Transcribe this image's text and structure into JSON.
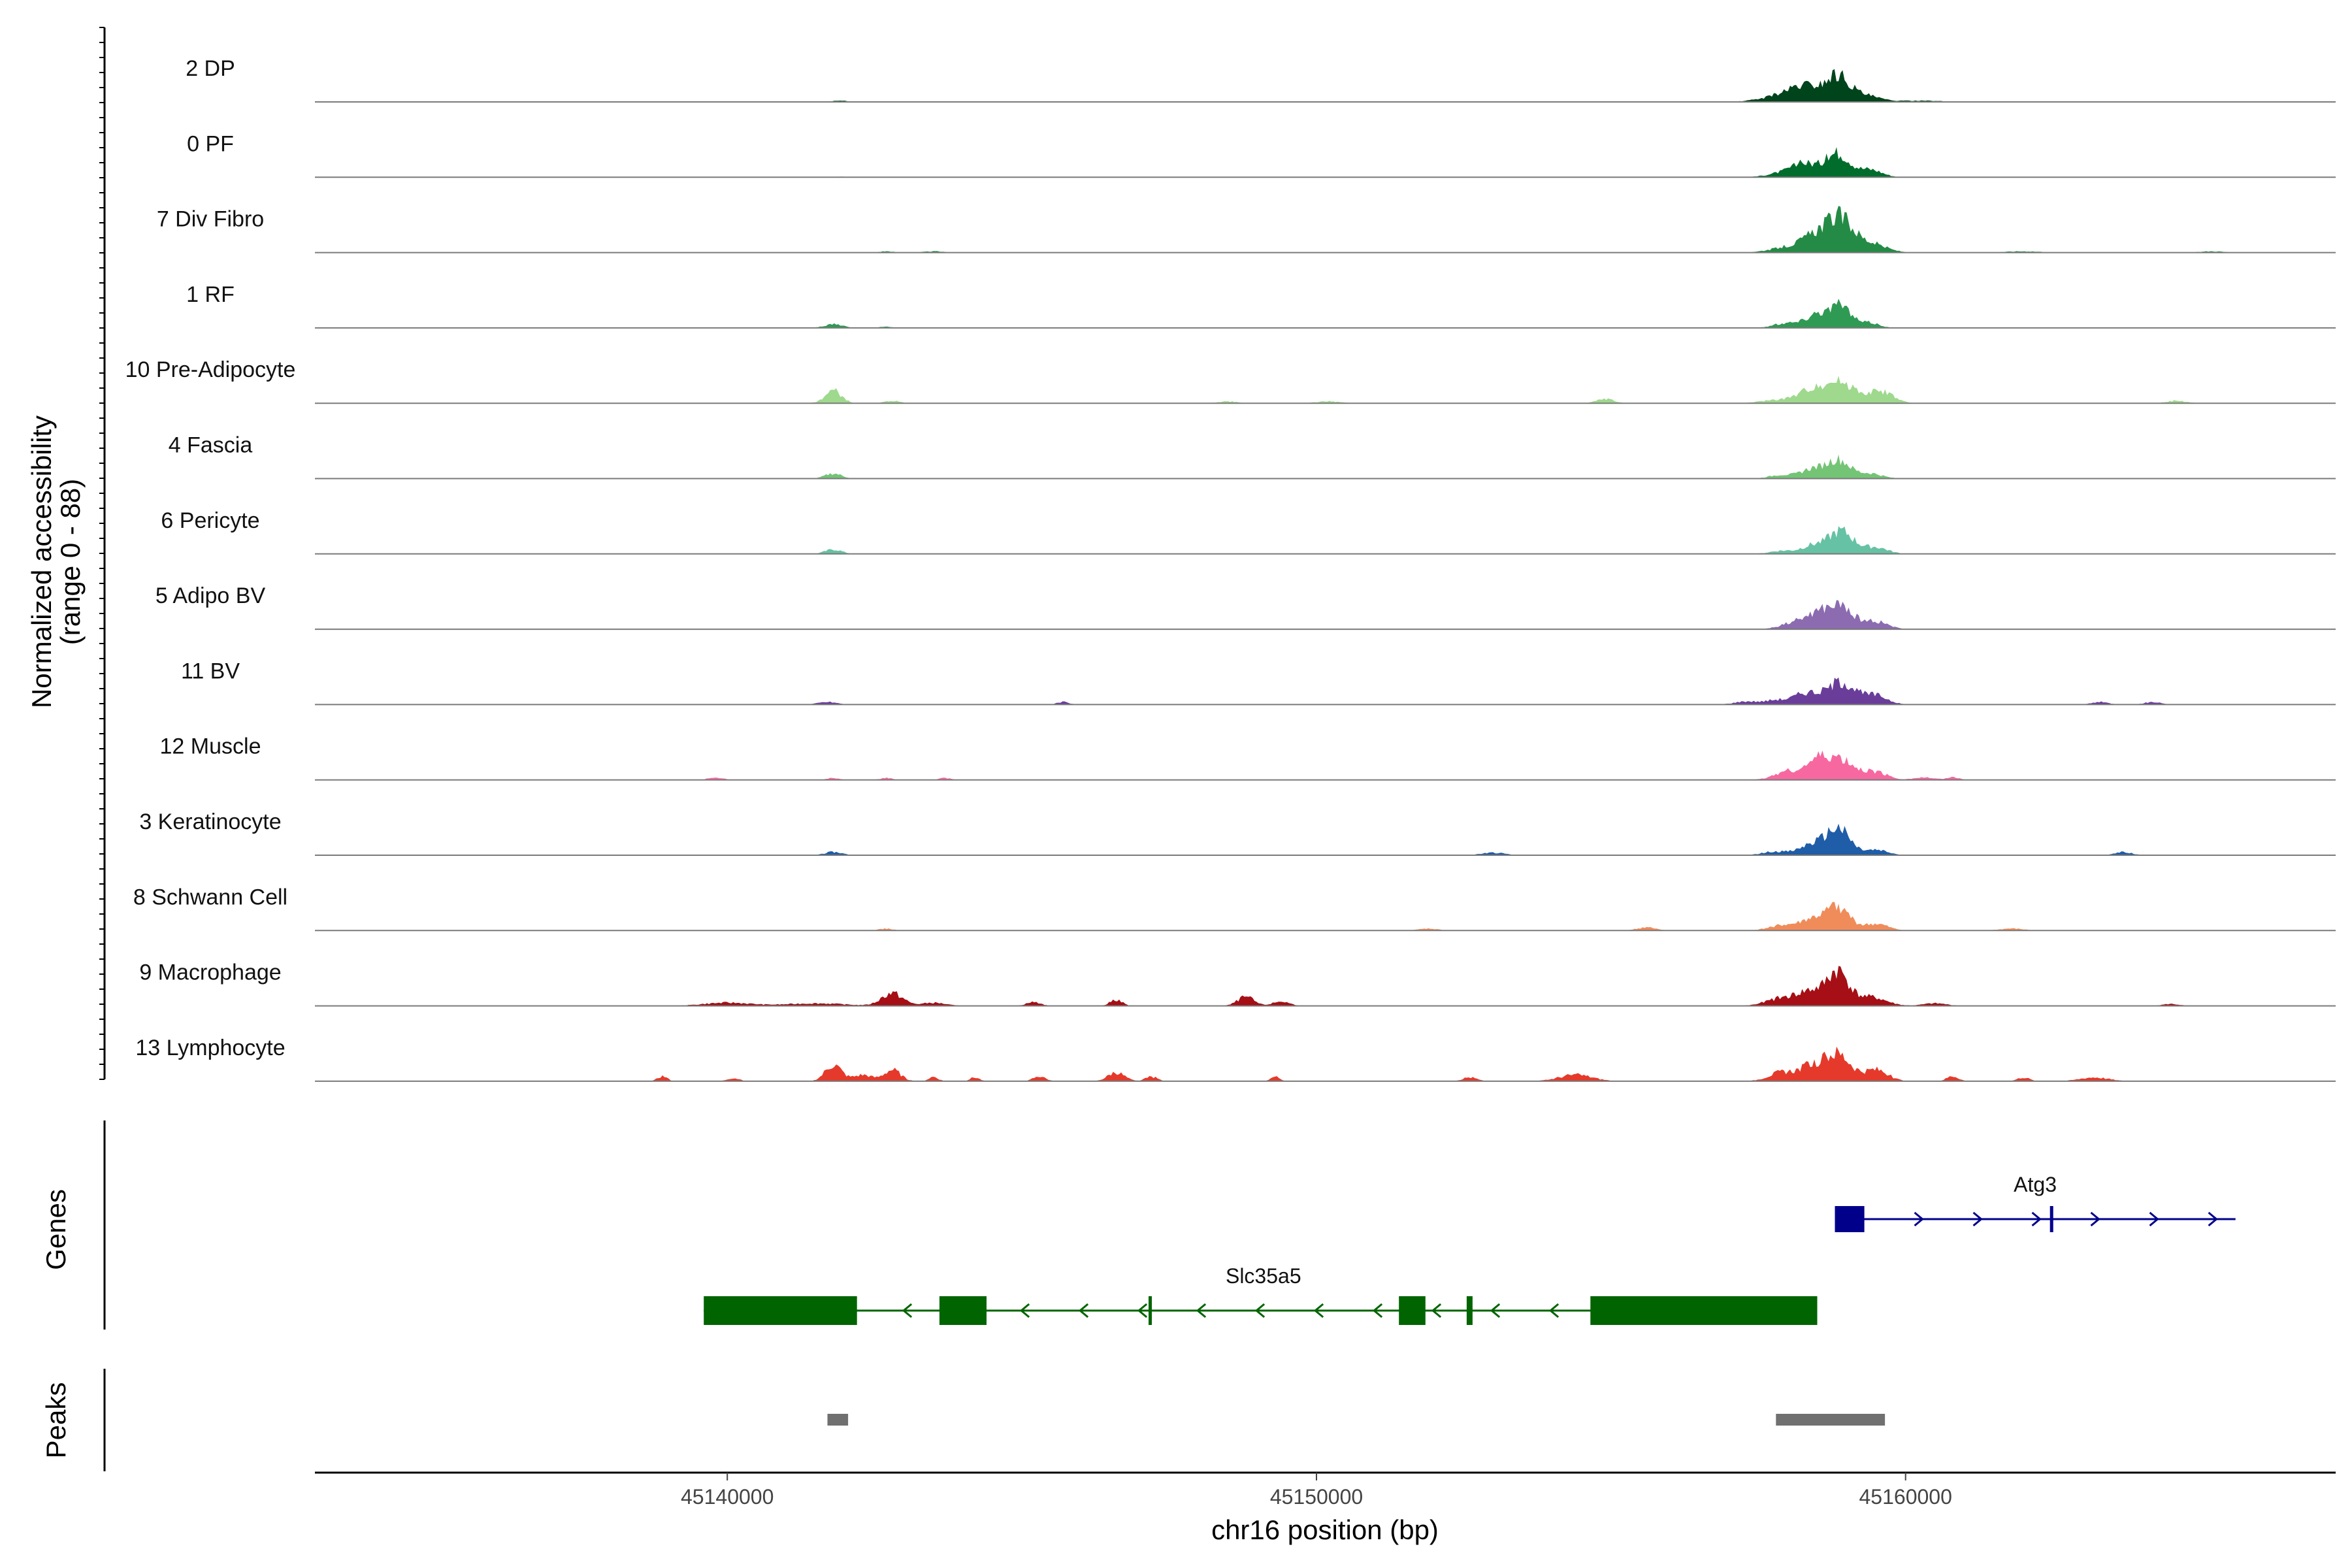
{
  "chart_data": {
    "type": "area",
    "title": "",
    "region": "chr16",
    "xlabel": "chr16 position (bp)",
    "ylabel_line1": "Normalized accessibility",
    "ylabel_line2": "(range 0 - 88)",
    "ylim": [
      0,
      88
    ],
    "xlim": [
      45133000,
      45167300
    ],
    "x_ticks": [
      45140000,
      45150000,
      45160000
    ],
    "x_tick_labels": [
      "45140000",
      "45150000",
      "45160000"
    ],
    "panels": {
      "genes_label": "Genes",
      "peaks_label": "Peaks"
    },
    "tracks": [
      {
        "name": "2 DP",
        "color": "#00441B",
        "peaks": [
          [
            45141900,
            2,
            140
          ],
          [
            45157800,
            8,
            300
          ],
          [
            45158300,
            25,
            260
          ],
          [
            45158850,
            40,
            200
          ],
          [
            45159300,
            10,
            240
          ],
          [
            45160200,
            2,
            400
          ]
        ]
      },
      {
        "name": "0 PF",
        "color": "#006D2C",
        "peaks": [
          [
            45141900,
            1,
            140
          ],
          [
            45157900,
            6,
            260
          ],
          [
            45158300,
            20,
            220
          ],
          [
            45158850,
            38,
            200
          ],
          [
            45159400,
            12,
            200
          ]
        ]
      },
      {
        "name": "7 Div Fibro",
        "color": "#238B45",
        "peaks": [
          [
            45142700,
            2,
            120
          ],
          [
            45143500,
            2,
            160
          ],
          [
            45158000,
            8,
            300
          ],
          [
            45158500,
            26,
            240
          ],
          [
            45158900,
            48,
            220
          ],
          [
            45159400,
            14,
            260
          ],
          [
            45162000,
            2,
            300
          ],
          [
            45165200,
            2,
            200
          ]
        ]
      },
      {
        "name": "1 RF",
        "color": "#2F9A54",
        "peaks": [
          [
            45141800,
            6,
            150
          ],
          [
            45142700,
            2,
            100
          ],
          [
            45158000,
            8,
            220
          ],
          [
            45158500,
            22,
            180
          ],
          [
            45158900,
            34,
            180
          ],
          [
            45159400,
            8,
            160
          ]
        ]
      },
      {
        "name": "10 Pre-Adipocyte",
        "color": "#9ED98D",
        "peaks": [
          [
            45141800,
            20,
            140
          ],
          [
            45142800,
            4,
            120
          ],
          [
            45148500,
            3,
            160
          ],
          [
            45150200,
            3,
            200
          ],
          [
            45154900,
            7,
            140
          ],
          [
            45157800,
            5,
            260
          ],
          [
            45158400,
            18,
            240
          ],
          [
            45158900,
            32,
            280
          ],
          [
            45159600,
            18,
            200
          ],
          [
            45164600,
            4,
            160
          ]
        ]
      },
      {
        "name": "4 Fascia",
        "color": "#74C476",
        "peaks": [
          [
            45141800,
            8,
            140
          ],
          [
            45157900,
            6,
            200
          ],
          [
            45158400,
            14,
            180
          ],
          [
            45158850,
            30,
            200
          ],
          [
            45159400,
            8,
            200
          ]
        ]
      },
      {
        "name": "6 Pericyte",
        "color": "#66C2A4",
        "peaks": [
          [
            45141800,
            7,
            140
          ],
          [
            45157900,
            5,
            200
          ],
          [
            45158400,
            12,
            180
          ],
          [
            45158900,
            36,
            220
          ],
          [
            45159500,
            10,
            200
          ]
        ]
      },
      {
        "name": "5 Adipo BV",
        "color": "#8C6BB1",
        "peaks": [
          [
            45158100,
            10,
            220
          ],
          [
            45158500,
            20,
            200
          ],
          [
            45158900,
            34,
            220
          ],
          [
            45159500,
            12,
            200
          ]
        ]
      },
      {
        "name": "11 BV",
        "color": "#6A3D9A",
        "peaks": [
          [
            45141700,
            4,
            160
          ],
          [
            45145700,
            4,
            100
          ],
          [
            45157300,
            5,
            200
          ],
          [
            45157800,
            7,
            180
          ],
          [
            45158300,
            18,
            200
          ],
          [
            45158900,
            36,
            240
          ],
          [
            45159500,
            14,
            200
          ],
          [
            45163300,
            4,
            140
          ],
          [
            45164200,
            4,
            140
          ]
        ]
      },
      {
        "name": "12 Muscle",
        "color": "#F768A1",
        "peaks": [
          [
            45139800,
            4,
            120
          ],
          [
            45141800,
            3,
            100
          ],
          [
            45142700,
            3,
            100
          ],
          [
            45143700,
            3,
            100
          ],
          [
            45158000,
            14,
            220
          ],
          [
            45158500,
            26,
            200
          ],
          [
            45158900,
            30,
            240
          ],
          [
            45159500,
            12,
            200
          ],
          [
            45160300,
            4,
            160
          ],
          [
            45160800,
            4,
            120
          ]
        ]
      },
      {
        "name": "3 Keratinocyte",
        "color": "#1F5DA8",
        "peaks": [
          [
            45141800,
            5,
            150
          ],
          [
            45153000,
            4,
            200
          ],
          [
            45157800,
            6,
            220
          ],
          [
            45158400,
            16,
            200
          ],
          [
            45158850,
            42,
            200
          ],
          [
            45159500,
            8,
            200
          ],
          [
            45163700,
            5,
            140
          ]
        ]
      },
      {
        "name": "8 Schwann Cell",
        "color": "#F08C5A",
        "peaks": [
          [
            45142700,
            3,
            120
          ],
          [
            45151900,
            3,
            160
          ],
          [
            45155600,
            5,
            160
          ],
          [
            45157900,
            8,
            220
          ],
          [
            45158400,
            16,
            200
          ],
          [
            45158850,
            36,
            200
          ],
          [
            45159500,
            10,
            200
          ],
          [
            45161800,
            3,
            200
          ]
        ]
      },
      {
        "name": "9 Macrophage",
        "color": "#A50F15",
        "peaks": [
          [
            45140000,
            5,
            400
          ],
          [
            45141500,
            4,
            500
          ],
          [
            45142800,
            20,
            180
          ],
          [
            45143500,
            5,
            200
          ],
          [
            45145200,
            6,
            120
          ],
          [
            45146600,
            10,
            100
          ],
          [
            45148800,
            14,
            140
          ],
          [
            45149400,
            7,
            140
          ],
          [
            45157900,
            12,
            260
          ],
          [
            45158400,
            22,
            220
          ],
          [
            45158850,
            52,
            180
          ],
          [
            45159400,
            14,
            260
          ],
          [
            45160500,
            4,
            200
          ],
          [
            45164500,
            3,
            140
          ]
        ]
      },
      {
        "name": "13 Lymphocyte",
        "color": "#E53A2B",
        "peaks": [
          [
            45138900,
            8,
            80
          ],
          [
            45140100,
            5,
            100
          ],
          [
            45141800,
            26,
            140
          ],
          [
            45142300,
            10,
            160
          ],
          [
            45142800,
            18,
            140
          ],
          [
            45143500,
            7,
            80
          ],
          [
            45144200,
            6,
            80
          ],
          [
            45145300,
            8,
            100
          ],
          [
            45146600,
            14,
            140
          ],
          [
            45147200,
            7,
            100
          ],
          [
            45149300,
            7,
            80
          ],
          [
            45152600,
            6,
            120
          ],
          [
            45154400,
            10,
            280
          ],
          [
            45157900,
            14,
            220
          ],
          [
            45158400,
            22,
            200
          ],
          [
            45158850,
            42,
            220
          ],
          [
            45159500,
            18,
            200
          ],
          [
            45160800,
            8,
            100
          ],
          [
            45162000,
            6,
            100
          ],
          [
            45163200,
            6,
            240
          ]
        ]
      }
    ],
    "genes": [
      {
        "name": "Atg3",
        "strand": "+",
        "color": "#00008B",
        "start": 45158800,
        "end": 45165600,
        "exons": [
          [
            45158800,
            45159300
          ],
          [
            45162450,
            45162500
          ]
        ],
        "label_pos": 45162200
      },
      {
        "name": "Slc35a5",
        "strand": "-",
        "color": "#006400",
        "start": 45139600,
        "end": 45158500,
        "exons": [
          [
            45139600,
            45142200
          ],
          [
            45143600,
            45144400
          ],
          [
            45147150,
            45147200
          ],
          [
            45151400,
            45151850
          ],
          [
            45152550,
            45152650
          ],
          [
            45154650,
            45158500
          ]
        ],
        "label_pos": 45149100
      }
    ],
    "peaks": [
      {
        "start": 45141700,
        "end": 45142050,
        "color": "#707070"
      },
      {
        "start": 45157800,
        "end": 45159650,
        "color": "#707070"
      }
    ]
  }
}
